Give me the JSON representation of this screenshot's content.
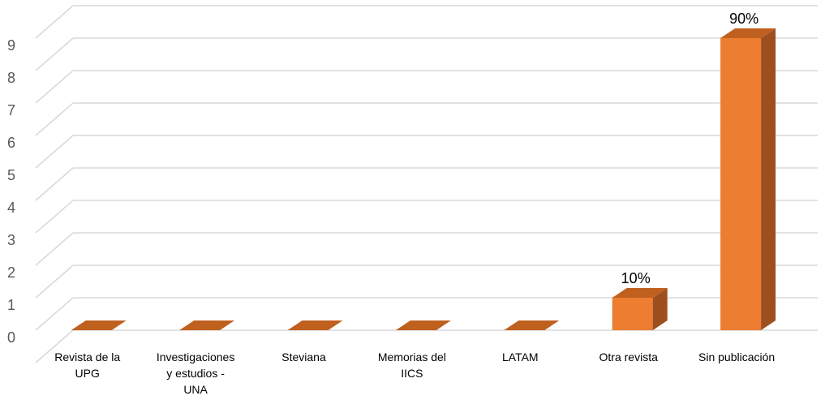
{
  "chart_data": {
    "type": "bar",
    "style": "3d-column",
    "categories": [
      [
        "Revista de la",
        "UPG"
      ],
      [
        "Investigaciones",
        "y estudios -",
        "UNA"
      ],
      [
        "Steviana"
      ],
      [
        "Memorias del",
        "IICS"
      ],
      [
        "LATAM"
      ],
      [
        "Otra revista"
      ],
      [
        "Sin publicación"
      ]
    ],
    "values": [
      0,
      0,
      0,
      0,
      0,
      1,
      9
    ],
    "data_labels": [
      "",
      "",
      "",
      "",
      "",
      "10%",
      "90%"
    ],
    "ylim": [
      0,
      9
    ],
    "yticks": [
      "0",
      "1",
      "2",
      "3",
      "4",
      "5",
      "6",
      "7",
      "8",
      "9"
    ],
    "grid": true,
    "legend": "none",
    "colors": {
      "bar_front": "#ED7D31",
      "bar_side": "#9E4F1E",
      "bar_top": "#C0601F",
      "grid": "#D9D9D9",
      "tick_text": "#595959"
    }
  }
}
